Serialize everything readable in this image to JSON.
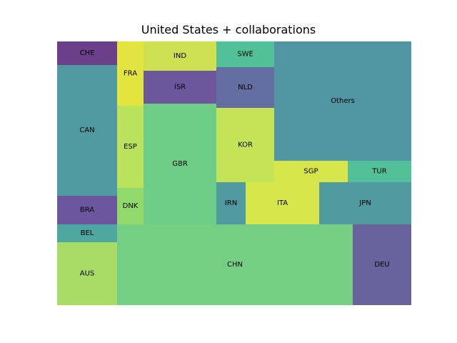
{
  "chart_data": {
    "type": "treemap",
    "title": "United States + collaborations",
    "cells": [
      {
        "label": "CHE",
        "color": "#6b3f8a"
      },
      {
        "label": "CAN",
        "color": "#4f9aa0"
      },
      {
        "label": "BRA",
        "color": "#6c569e"
      },
      {
        "label": "BEL",
        "color": "#4fa7a1"
      },
      {
        "label": "AUS",
        "color": "#a8dc66"
      },
      {
        "label": "FRA",
        "color": "#e4e441"
      },
      {
        "label": "ESP",
        "color": "#bbe25d"
      },
      {
        "label": "DNK",
        "color": "#92d96c"
      },
      {
        "label": "IND",
        "color": "#cde153"
      },
      {
        "label": "ISR",
        "color": "#6c579d"
      },
      {
        "label": "GBR",
        "color": "#6ecd86"
      },
      {
        "label": "SWE",
        "color": "#52c098"
      },
      {
        "label": "NLD",
        "color": "#646ea0"
      },
      {
        "label": "KOR",
        "color": "#c4e357"
      },
      {
        "label": "IRN",
        "color": "#4f9aa0"
      },
      {
        "label": "Others",
        "color": "#5296a3"
      },
      {
        "label": "SGP",
        "color": "#d6e64a"
      },
      {
        "label": "TUR",
        "color": "#52c098"
      },
      {
        "label": "ITA",
        "color": "#d6e64a"
      },
      {
        "label": "JPN",
        "color": "#4f9ba0"
      },
      {
        "label": "CHN",
        "color": "#74cf85"
      },
      {
        "label": "DEU",
        "color": "#69629c"
      }
    ]
  }
}
